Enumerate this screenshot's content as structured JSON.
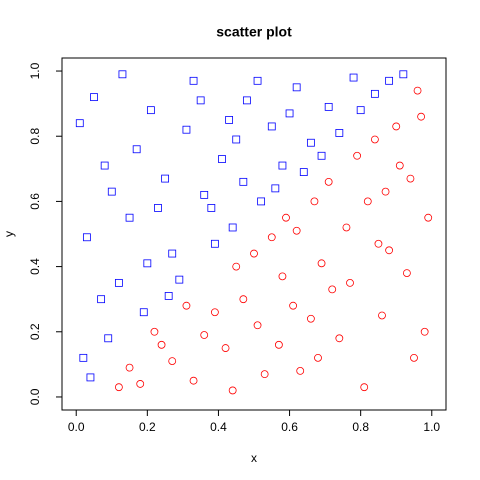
{
  "chart_data": {
    "type": "scatter",
    "title": "scatter plot",
    "x_label": "x",
    "y_label": "y",
    "xlim": [
      -0.04,
      1.04
    ],
    "ylim": [
      -0.04,
      1.04
    ],
    "xticks": [
      {
        "value": 0,
        "label": "0.0"
      },
      0.2,
      0.4,
      0.6,
      0.8,
      {
        "value": 1,
        "label": "1.0"
      }
    ],
    "yticks": [
      {
        "value": 0,
        "label": "0.0"
      },
      0.2,
      0.4,
      0.6,
      0.8,
      {
        "value": 1,
        "label": "1.0"
      }
    ],
    "series": [
      {
        "color": "#0000ff",
        "marker": "square",
        "x": [
          0.05,
          0.12,
          0.08,
          0.21,
          0.33,
          0.15,
          0.02,
          0.27,
          0.41,
          0.36,
          0.48,
          0.55,
          0.62,
          0.71,
          0.78,
          0.84,
          0.44,
          0.19,
          0.09,
          0.03,
          0.25,
          0.31,
          0.58,
          0.66,
          0.52,
          0.39,
          0.13,
          0.07,
          0.23,
          0.29,
          0.47,
          0.6,
          0.69,
          0.74,
          0.88,
          0.92,
          0.17,
          0.35,
          0.43,
          0.51,
          0.1,
          0.01,
          0.26,
          0.56,
          0.64,
          0.38,
          0.2,
          0.04,
          0.45,
          0.8
        ],
        "values": [
          0.92,
          0.35,
          0.71,
          0.88,
          0.97,
          0.55,
          0.12,
          0.44,
          0.73,
          0.62,
          0.91,
          0.83,
          0.95,
          0.89,
          0.98,
          0.93,
          0.52,
          0.26,
          0.18,
          0.49,
          0.67,
          0.82,
          0.71,
          0.78,
          0.6,
          0.47,
          0.99,
          0.3,
          0.58,
          0.36,
          0.66,
          0.87,
          0.74,
          0.81,
          0.97,
          0.99,
          0.76,
          0.91,
          0.85,
          0.97,
          0.63,
          0.84,
          0.31,
          0.64,
          0.69,
          0.58,
          0.41,
          0.06,
          0.79,
          0.88
        ]
      },
      {
        "color": "#ff0000",
        "marker": "circle",
        "x": [
          0.95,
          0.88,
          0.72,
          0.63,
          0.51,
          0.42,
          0.33,
          0.27,
          0.18,
          0.97,
          0.91,
          0.82,
          0.76,
          0.69,
          0.58,
          0.47,
          0.39,
          0.55,
          0.67,
          0.79,
          0.86,
          0.93,
          0.99,
          0.74,
          0.61,
          0.53,
          0.45,
          0.36,
          0.24,
          0.15,
          0.84,
          0.9,
          0.96,
          0.71,
          0.62,
          0.5,
          0.81,
          0.68,
          0.57,
          0.44,
          0.98,
          0.87,
          0.77,
          0.66,
          0.59,
          0.31,
          0.22,
          0.12,
          0.94,
          0.85
        ],
        "values": [
          0.12,
          0.45,
          0.33,
          0.08,
          0.22,
          0.15,
          0.05,
          0.11,
          0.04,
          0.86,
          0.71,
          0.6,
          0.52,
          0.41,
          0.37,
          0.3,
          0.26,
          0.49,
          0.6,
          0.74,
          0.25,
          0.38,
          0.55,
          0.18,
          0.28,
          0.07,
          0.4,
          0.19,
          0.16,
          0.09,
          0.79,
          0.83,
          0.94,
          0.66,
          0.51,
          0.44,
          0.03,
          0.12,
          0.16,
          0.02,
          0.2,
          0.63,
          0.35,
          0.24,
          0.55,
          0.28,
          0.2,
          0.03,
          0.67,
          0.47
        ]
      }
    ]
  }
}
